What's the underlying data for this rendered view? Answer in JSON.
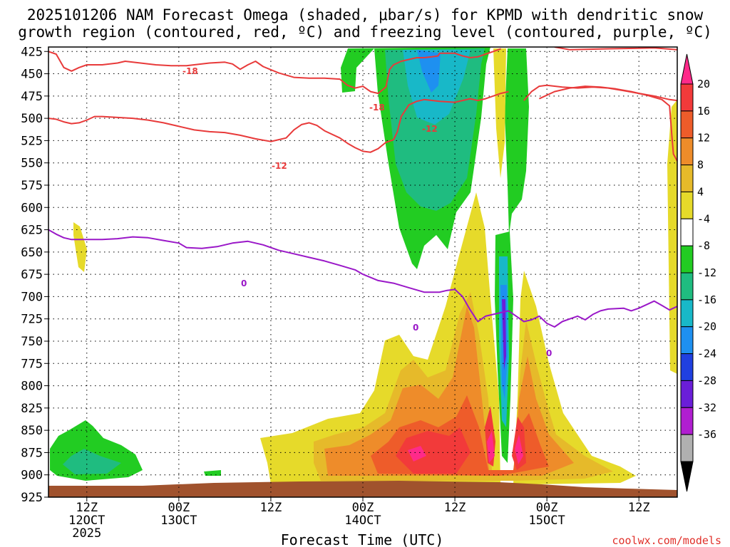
{
  "chart_data": {
    "type": "contour",
    "title_line1": "2025101206 NAM Forecast Omega (shaded, μbar/s) for KPMD with dendritic snow",
    "title_line2": "growth region (contoured, red, ºC) and freezing level (contoured, purple, ºC)",
    "xlabel": "Forecast Time (UTC)",
    "credit": "coolwx.com/models",
    "y_ticks": [
      425,
      450,
      475,
      500,
      525,
      550,
      575,
      600,
      625,
      650,
      675,
      700,
      725,
      750,
      775,
      800,
      825,
      850,
      875,
      900,
      925
    ],
    "ylim": [
      925,
      420
    ],
    "xlim": [
      7,
      89
    ],
    "x_ticks": [
      {
        "t": 12,
        "line1": "12Z",
        "line2": "12OCT",
        "line3": "2025"
      },
      {
        "t": 24,
        "line1": "00Z",
        "line2": "13OCT",
        "line3": ""
      },
      {
        "t": 36,
        "line1": "12Z",
        "line2": "",
        "line3": ""
      },
      {
        "t": 48,
        "line1": "00Z",
        "line2": "14OCT",
        "line3": ""
      },
      {
        "t": 60,
        "line1": "12Z",
        "line2": "",
        "line3": ""
      },
      {
        "t": 72,
        "line1": "00Z",
        "line2": "15OCT",
        "line3": ""
      },
      {
        "t": 84,
        "line1": "12Z",
        "line2": "",
        "line3": ""
      }
    ],
    "colorbar": {
      "levels": [
        20,
        16,
        12,
        8,
        4,
        -4,
        -8,
        -12,
        -16,
        -20,
        -24,
        -28,
        -32,
        -36
      ],
      "colors": [
        "#ff2a8a",
        "#f23a3a",
        "#ee5c2a",
        "#ee8c2a",
        "#e6ba2a",
        "#e6da2a",
        "#ffffff",
        "#22cc22",
        "#1fbc80",
        "#18b8c8",
        "#1e90f0",
        "#2040e0",
        "#6a1ed8",
        "#b01ed0",
        "#b0b0b0",
        "#000000"
      ]
    },
    "contour_labels": {
      "dgz_top": "-18",
      "dgz_bottom": "-12",
      "freezing": "0"
    },
    "series": [
      {
        "name": "dendritic growth -18C",
        "color": "#e83a3a",
        "points": [
          [
            7,
            425
          ],
          [
            8,
            428
          ],
          [
            9,
            443
          ],
          [
            10,
            447
          ],
          [
            11,
            443
          ],
          [
            12,
            440
          ],
          [
            14,
            440
          ],
          [
            16,
            438
          ],
          [
            17,
            436
          ],
          [
            19,
            438
          ],
          [
            21,
            440
          ],
          [
            23,
            441
          ],
          [
            25,
            441
          ],
          [
            27,
            439
          ],
          [
            28,
            438
          ],
          [
            30,
            437
          ],
          [
            31,
            439
          ],
          [
            32,
            445
          ],
          [
            33,
            440
          ],
          [
            34,
            436
          ],
          [
            35,
            442
          ],
          [
            37,
            449
          ],
          [
            39,
            454
          ],
          [
            41,
            455
          ],
          [
            43,
            455
          ],
          [
            45,
            456
          ],
          [
            46,
            463
          ],
          [
            47,
            466
          ],
          [
            48,
            464
          ],
          [
            49,
            470
          ],
          [
            50,
            472
          ],
          [
            51,
            465
          ],
          [
            51.5,
            445
          ],
          [
            52,
            440
          ],
          [
            53,
            436
          ],
          [
            54,
            434
          ],
          [
            55,
            432
          ],
          [
            56,
            432
          ],
          [
            57,
            431
          ],
          [
            57.8,
            430
          ],
          [
            58,
            427
          ],
          [
            59,
            427
          ],
          [
            60,
            427
          ],
          [
            61,
            430
          ],
          [
            62,
            432
          ],
          [
            63,
            431
          ],
          [
            64,
            428
          ],
          [
            65,
            425
          ],
          [
            66,
            422
          ]
        ]
      },
      {
        "name": "dendritic growth -18C (east)",
        "color": "#e83a3a",
        "points": [
          [
            73,
            420
          ],
          [
            75,
            423
          ],
          [
            80,
            422
          ],
          [
            86,
            421
          ],
          [
            89,
            423
          ]
        ]
      },
      {
        "name": "dendritic growth -18C (lower branch)",
        "color": "#e83a3a",
        "points": [
          [
            69,
            480
          ],
          [
            70,
            470
          ],
          [
            71,
            464
          ],
          [
            72,
            463
          ],
          [
            74,
            465
          ],
          [
            76,
            466
          ],
          [
            78,
            465
          ],
          [
            80,
            466
          ],
          [
            82,
            469
          ],
          [
            84,
            472
          ],
          [
            86,
            475
          ],
          [
            88,
            479
          ],
          [
            89,
            480
          ]
        ]
      },
      {
        "name": "dendritic growth -12C",
        "color": "#e83a3a",
        "points": [
          [
            7,
            500
          ],
          [
            8,
            501
          ],
          [
            9,
            504
          ],
          [
            10,
            506
          ],
          [
            11,
            505
          ],
          [
            12,
            502
          ],
          [
            13,
            498
          ],
          [
            14,
            498
          ],
          [
            16,
            499
          ],
          [
            18,
            500
          ],
          [
            20,
            502
          ],
          [
            22,
            505
          ],
          [
            24,
            509
          ],
          [
            26,
            513
          ],
          [
            28,
            515
          ],
          [
            30,
            516
          ],
          [
            32,
            519
          ],
          [
            34,
            523
          ],
          [
            36,
            526
          ],
          [
            38,
            522
          ],
          [
            39,
            513
          ],
          [
            40,
            507
          ],
          [
            41,
            505
          ],
          [
            42,
            508
          ],
          [
            43,
            514
          ],
          [
            45,
            522
          ],
          [
            46,
            528
          ],
          [
            47,
            533
          ],
          [
            48,
            537
          ],
          [
            49,
            538
          ],
          [
            50,
            534
          ],
          [
            51,
            527
          ],
          [
            52,
            524
          ],
          [
            52.5,
            515
          ],
          [
            53,
            498
          ],
          [
            54,
            485
          ],
          [
            55,
            481
          ],
          [
            56,
            479
          ],
          [
            58,
            481
          ],
          [
            60,
            482
          ],
          [
            61,
            480
          ],
          [
            62,
            478
          ],
          [
            63,
            480
          ],
          [
            64,
            478
          ],
          [
            65,
            475
          ],
          [
            66,
            472
          ],
          [
            67,
            470
          ]
        ]
      },
      {
        "name": "dendritic growth -12C (east)",
        "color": "#e83a3a",
        "points": [
          [
            71,
            478
          ],
          [
            73,
            470
          ],
          [
            75,
            466
          ],
          [
            77,
            464
          ],
          [
            79,
            465
          ],
          [
            81,
            467
          ],
          [
            83,
            470
          ],
          [
            85,
            474
          ],
          [
            87,
            479
          ],
          [
            88,
            486
          ],
          [
            88.3,
            520
          ],
          [
            88.5,
            540
          ],
          [
            89,
            548
          ]
        ]
      },
      {
        "name": "freezing level 0C",
        "color": "#9a18c8",
        "points": [
          [
            7,
            625
          ],
          [
            8,
            630
          ],
          [
            9,
            634
          ],
          [
            10,
            636
          ],
          [
            12,
            636
          ],
          [
            14,
            636
          ],
          [
            16,
            635
          ],
          [
            18,
            633
          ],
          [
            20,
            634
          ],
          [
            22,
            637
          ],
          [
            24,
            640
          ],
          [
            25,
            645
          ],
          [
            27,
            646
          ],
          [
            29,
            644
          ],
          [
            31,
            640
          ],
          [
            33,
            638
          ],
          [
            35,
            642
          ],
          [
            37,
            648
          ],
          [
            39,
            652
          ],
          [
            41,
            656
          ],
          [
            43,
            660
          ],
          [
            45,
            665
          ],
          [
            47,
            670
          ],
          [
            48,
            675
          ],
          [
            50,
            682
          ],
          [
            52,
            685
          ],
          [
            54,
            690
          ],
          [
            56,
            695
          ],
          [
            58,
            695
          ],
          [
            59,
            693
          ],
          [
            60,
            692
          ],
          [
            61,
            700
          ],
          [
            62,
            715
          ],
          [
            63,
            728
          ],
          [
            64,
            722
          ],
          [
            65,
            720
          ],
          [
            66,
            718
          ],
          [
            67,
            716
          ],
          [
            68,
            722
          ],
          [
            69,
            728
          ],
          [
            70,
            726
          ],
          [
            71,
            722
          ],
          [
            72,
            730
          ],
          [
            73,
            734
          ],
          [
            74,
            728
          ],
          [
            75,
            725
          ],
          [
            76,
            722
          ],
          [
            77,
            726
          ],
          [
            78,
            720
          ],
          [
            79,
            716
          ],
          [
            80,
            714
          ],
          [
            82,
            713
          ],
          [
            83,
            716
          ],
          [
            84,
            713
          ],
          [
            85,
            709
          ],
          [
            86,
            705
          ],
          [
            87,
            710
          ],
          [
            88,
            715
          ],
          [
            89,
            711
          ]
        ]
      }
    ]
  }
}
